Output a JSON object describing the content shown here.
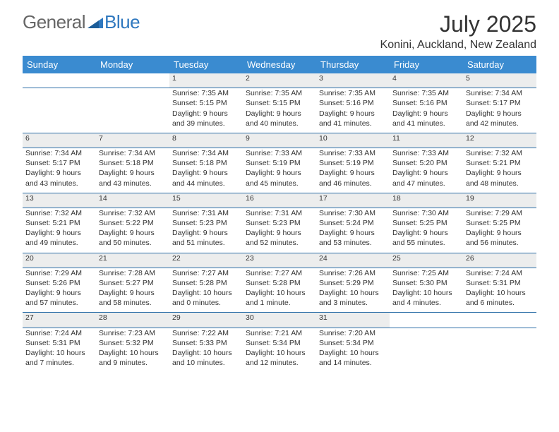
{
  "logo": {
    "part1": "General",
    "part2": "Blue"
  },
  "title": "July 2025",
  "location": "Konini, Auckland, New Zealand",
  "header_bg": "#3a8bd0",
  "header_fg": "#ffffff",
  "rule_color": "#2d6fa8",
  "daynum_bg": "#eceded",
  "text_color": "#333333",
  "columns": [
    "Sunday",
    "Monday",
    "Tuesday",
    "Wednesday",
    "Thursday",
    "Friday",
    "Saturday"
  ],
  "weeks": [
    {
      "nums": [
        "",
        "",
        "1",
        "2",
        "3",
        "4",
        "5"
      ],
      "cells": [
        null,
        null,
        {
          "sunrise": "Sunrise: 7:35 AM",
          "sunset": "Sunset: 5:15 PM",
          "day1": "Daylight: 9 hours",
          "day2": "and 39 minutes."
        },
        {
          "sunrise": "Sunrise: 7:35 AM",
          "sunset": "Sunset: 5:15 PM",
          "day1": "Daylight: 9 hours",
          "day2": "and 40 minutes."
        },
        {
          "sunrise": "Sunrise: 7:35 AM",
          "sunset": "Sunset: 5:16 PM",
          "day1": "Daylight: 9 hours",
          "day2": "and 41 minutes."
        },
        {
          "sunrise": "Sunrise: 7:35 AM",
          "sunset": "Sunset: 5:16 PM",
          "day1": "Daylight: 9 hours",
          "day2": "and 41 minutes."
        },
        {
          "sunrise": "Sunrise: 7:34 AM",
          "sunset": "Sunset: 5:17 PM",
          "day1": "Daylight: 9 hours",
          "day2": "and 42 minutes."
        }
      ]
    },
    {
      "nums": [
        "6",
        "7",
        "8",
        "9",
        "10",
        "11",
        "12"
      ],
      "cells": [
        {
          "sunrise": "Sunrise: 7:34 AM",
          "sunset": "Sunset: 5:17 PM",
          "day1": "Daylight: 9 hours",
          "day2": "and 43 minutes."
        },
        {
          "sunrise": "Sunrise: 7:34 AM",
          "sunset": "Sunset: 5:18 PM",
          "day1": "Daylight: 9 hours",
          "day2": "and 43 minutes."
        },
        {
          "sunrise": "Sunrise: 7:34 AM",
          "sunset": "Sunset: 5:18 PM",
          "day1": "Daylight: 9 hours",
          "day2": "and 44 minutes."
        },
        {
          "sunrise": "Sunrise: 7:33 AM",
          "sunset": "Sunset: 5:19 PM",
          "day1": "Daylight: 9 hours",
          "day2": "and 45 minutes."
        },
        {
          "sunrise": "Sunrise: 7:33 AM",
          "sunset": "Sunset: 5:19 PM",
          "day1": "Daylight: 9 hours",
          "day2": "and 46 minutes."
        },
        {
          "sunrise": "Sunrise: 7:33 AM",
          "sunset": "Sunset: 5:20 PM",
          "day1": "Daylight: 9 hours",
          "day2": "and 47 minutes."
        },
        {
          "sunrise": "Sunrise: 7:32 AM",
          "sunset": "Sunset: 5:21 PM",
          "day1": "Daylight: 9 hours",
          "day2": "and 48 minutes."
        }
      ]
    },
    {
      "nums": [
        "13",
        "14",
        "15",
        "16",
        "17",
        "18",
        "19"
      ],
      "cells": [
        {
          "sunrise": "Sunrise: 7:32 AM",
          "sunset": "Sunset: 5:21 PM",
          "day1": "Daylight: 9 hours",
          "day2": "and 49 minutes."
        },
        {
          "sunrise": "Sunrise: 7:32 AM",
          "sunset": "Sunset: 5:22 PM",
          "day1": "Daylight: 9 hours",
          "day2": "and 50 minutes."
        },
        {
          "sunrise": "Sunrise: 7:31 AM",
          "sunset": "Sunset: 5:23 PM",
          "day1": "Daylight: 9 hours",
          "day2": "and 51 minutes."
        },
        {
          "sunrise": "Sunrise: 7:31 AM",
          "sunset": "Sunset: 5:23 PM",
          "day1": "Daylight: 9 hours",
          "day2": "and 52 minutes."
        },
        {
          "sunrise": "Sunrise: 7:30 AM",
          "sunset": "Sunset: 5:24 PM",
          "day1": "Daylight: 9 hours",
          "day2": "and 53 minutes."
        },
        {
          "sunrise": "Sunrise: 7:30 AM",
          "sunset": "Sunset: 5:25 PM",
          "day1": "Daylight: 9 hours",
          "day2": "and 55 minutes."
        },
        {
          "sunrise": "Sunrise: 7:29 AM",
          "sunset": "Sunset: 5:25 PM",
          "day1": "Daylight: 9 hours",
          "day2": "and 56 minutes."
        }
      ]
    },
    {
      "nums": [
        "20",
        "21",
        "22",
        "23",
        "24",
        "25",
        "26"
      ],
      "cells": [
        {
          "sunrise": "Sunrise: 7:29 AM",
          "sunset": "Sunset: 5:26 PM",
          "day1": "Daylight: 9 hours",
          "day2": "and 57 minutes."
        },
        {
          "sunrise": "Sunrise: 7:28 AM",
          "sunset": "Sunset: 5:27 PM",
          "day1": "Daylight: 9 hours",
          "day2": "and 58 minutes."
        },
        {
          "sunrise": "Sunrise: 7:27 AM",
          "sunset": "Sunset: 5:28 PM",
          "day1": "Daylight: 10 hours",
          "day2": "and 0 minutes."
        },
        {
          "sunrise": "Sunrise: 7:27 AM",
          "sunset": "Sunset: 5:28 PM",
          "day1": "Daylight: 10 hours",
          "day2": "and 1 minute."
        },
        {
          "sunrise": "Sunrise: 7:26 AM",
          "sunset": "Sunset: 5:29 PM",
          "day1": "Daylight: 10 hours",
          "day2": "and 3 minutes."
        },
        {
          "sunrise": "Sunrise: 7:25 AM",
          "sunset": "Sunset: 5:30 PM",
          "day1": "Daylight: 10 hours",
          "day2": "and 4 minutes."
        },
        {
          "sunrise": "Sunrise: 7:24 AM",
          "sunset": "Sunset: 5:31 PM",
          "day1": "Daylight: 10 hours",
          "day2": "and 6 minutes."
        }
      ]
    },
    {
      "nums": [
        "27",
        "28",
        "29",
        "30",
        "31",
        "",
        ""
      ],
      "cells": [
        {
          "sunrise": "Sunrise: 7:24 AM",
          "sunset": "Sunset: 5:31 PM",
          "day1": "Daylight: 10 hours",
          "day2": "and 7 minutes."
        },
        {
          "sunrise": "Sunrise: 7:23 AM",
          "sunset": "Sunset: 5:32 PM",
          "day1": "Daylight: 10 hours",
          "day2": "and 9 minutes."
        },
        {
          "sunrise": "Sunrise: 7:22 AM",
          "sunset": "Sunset: 5:33 PM",
          "day1": "Daylight: 10 hours",
          "day2": "and 10 minutes."
        },
        {
          "sunrise": "Sunrise: 7:21 AM",
          "sunset": "Sunset: 5:34 PM",
          "day1": "Daylight: 10 hours",
          "day2": "and 12 minutes."
        },
        {
          "sunrise": "Sunrise: 7:20 AM",
          "sunset": "Sunset: 5:34 PM",
          "day1": "Daylight: 10 hours",
          "day2": "and 14 minutes."
        },
        null,
        null
      ]
    }
  ]
}
